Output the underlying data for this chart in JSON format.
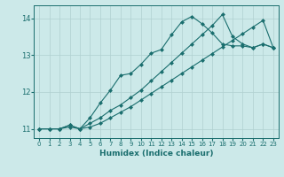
{
  "xlabel": "Humidex (Indice chaleur)",
  "ylabel": "",
  "xlim": [
    -0.5,
    23.5
  ],
  "ylim": [
    10.75,
    14.35
  ],
  "yticks": [
    11,
    12,
    13,
    14
  ],
  "xticks": [
    0,
    1,
    2,
    3,
    4,
    5,
    6,
    7,
    8,
    9,
    10,
    11,
    12,
    13,
    14,
    15,
    16,
    17,
    18,
    19,
    20,
    21,
    22,
    23
  ],
  "bg_color": "#cce9e9",
  "grid_color": "#b0d0d0",
  "line_color": "#1a6e6e",
  "lines": [
    {
      "x": [
        0,
        1,
        2,
        3,
        4,
        5,
        6,
        7,
        8,
        9,
        10,
        11,
        12,
        13,
        14,
        15,
        16,
        17,
        18,
        19,
        20,
        21,
        22,
        23
      ],
      "y": [
        11.0,
        11.0,
        11.0,
        11.1,
        11.0,
        11.3,
        11.7,
        12.05,
        12.45,
        12.5,
        12.75,
        13.05,
        13.15,
        13.55,
        13.9,
        14.05,
        13.85,
        13.6,
        13.3,
        13.25,
        13.25,
        13.2,
        13.3,
        13.2
      ]
    },
    {
      "x": [
        0,
        1,
        2,
        3,
        4,
        5,
        6,
        7,
        8,
        9,
        10,
        11,
        12,
        13,
        14,
        15,
        16,
        17,
        18,
        19,
        20,
        21,
        22,
        23
      ],
      "y": [
        11.0,
        11.0,
        11.0,
        11.1,
        11.0,
        11.15,
        11.3,
        11.5,
        11.65,
        11.85,
        12.05,
        12.3,
        12.55,
        12.8,
        13.05,
        13.3,
        13.55,
        13.8,
        14.1,
        13.5,
        13.3,
        13.2,
        13.3,
        13.2
      ]
    },
    {
      "x": [
        0,
        1,
        2,
        3,
        4,
        5,
        6,
        7,
        8,
        9,
        10,
        11,
        12,
        13,
        14,
        15,
        16,
        17,
        18,
        19,
        20,
        21,
        22,
        23
      ],
      "y": [
        11.0,
        11.0,
        11.0,
        11.05,
        11.0,
        11.05,
        11.15,
        11.3,
        11.45,
        11.6,
        11.78,
        11.96,
        12.14,
        12.32,
        12.5,
        12.68,
        12.86,
        13.04,
        13.22,
        13.4,
        13.58,
        13.76,
        13.94,
        13.2
      ]
    }
  ]
}
